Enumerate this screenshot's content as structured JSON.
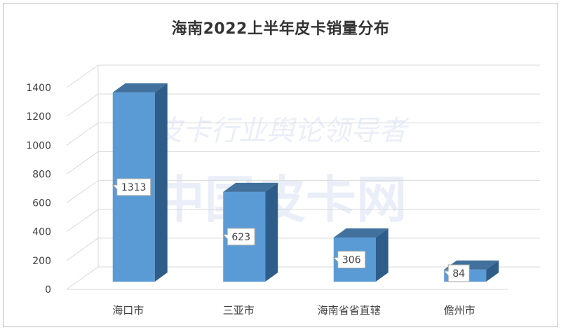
{
  "chart_data": {
    "type": "bar",
    "title": "海南2022上半年皮卡销量分布",
    "categories": [
      "海口市",
      "三亚市",
      "海南省省直辖",
      "儋州市"
    ],
    "values": [
      1313,
      623,
      306,
      84
    ],
    "ylim": [
      0,
      1400
    ],
    "yticks": [
      0,
      200,
      400,
      600,
      800,
      1000,
      1200,
      1400
    ],
    "xlabel": "",
    "ylabel": "",
    "grid": true,
    "legend": "none",
    "style": "3d-column"
  },
  "colors": {
    "bar_front": "#5b9bd5",
    "bar_top": "#41719c",
    "bar_side": "#2e5d8a",
    "grid": "#d9d9d9",
    "text": "#404040",
    "label_border": "#a6a6a6"
  },
  "watermark": {
    "line1": "皮卡行业舆论领导者",
    "line2": "中国皮卡网"
  }
}
